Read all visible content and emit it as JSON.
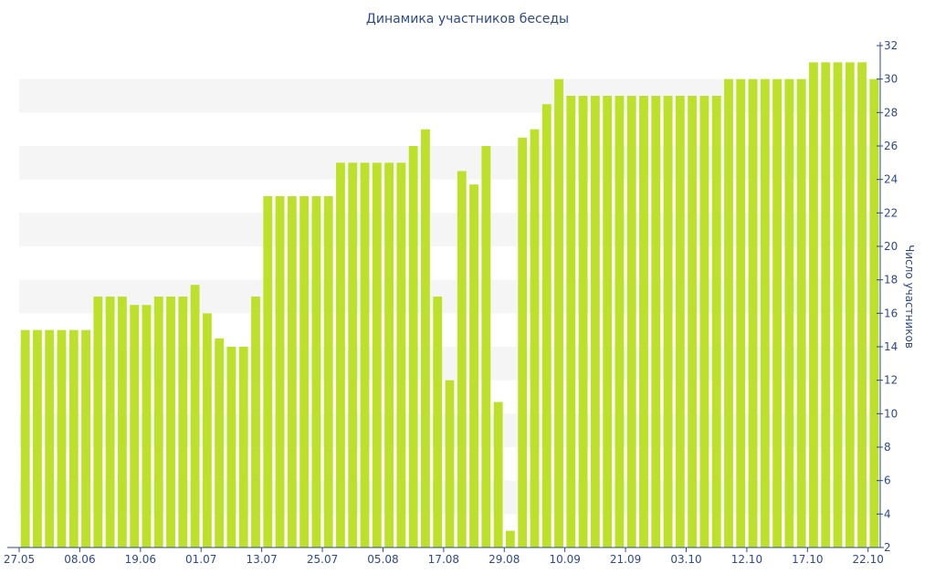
{
  "chart_data": {
    "type": "bar",
    "title": "Динамика участников беседы",
    "ylabel": "Число участников",
    "xlabel": "",
    "ylim": [
      2,
      32
    ],
    "yticks": [
      2,
      4,
      6,
      8,
      10,
      12,
      14,
      16,
      18,
      20,
      22,
      24,
      26,
      28,
      30,
      32
    ],
    "y_axis_side": "right",
    "grid": "alternating horizontal bands",
    "x_tick_labels": [
      {
        "index": 0,
        "label": "27.05"
      },
      {
        "index": 5,
        "label": "08.06"
      },
      {
        "index": 10,
        "label": "19.06"
      },
      {
        "index": 15,
        "label": "01.07"
      },
      {
        "index": 20,
        "label": "13.07"
      },
      {
        "index": 25,
        "label": "25.07"
      },
      {
        "index": 30,
        "label": "05.08"
      },
      {
        "index": 35,
        "label": "17.08"
      },
      {
        "index": 40,
        "label": "29.08"
      },
      {
        "index": 45,
        "label": "10.09"
      },
      {
        "index": 50,
        "label": "21.09"
      },
      {
        "index": 55,
        "label": "03.10"
      },
      {
        "index": 60,
        "label": "12.10"
      },
      {
        "index": 65,
        "label": "17.10"
      },
      {
        "index": 70,
        "label": "22.10"
      }
    ],
    "values": [
      15,
      15,
      15,
      15,
      15,
      15,
      17,
      17,
      17,
      16.5,
      16.5,
      17,
      17,
      17,
      17.7,
      16,
      14.5,
      14,
      14,
      17,
      23,
      23,
      23,
      23,
      23,
      23,
      25,
      25,
      25,
      25,
      25,
      25,
      26,
      27,
      17,
      12,
      24.5,
      23.7,
      26,
      10.7,
      3,
      26.5,
      27,
      28.5,
      30,
      29,
      29,
      29,
      29,
      29,
      29,
      29,
      29,
      29,
      29,
      29,
      29,
      29,
      30,
      30,
      30,
      30,
      30,
      30,
      30,
      31,
      31,
      31,
      31,
      31,
      30
    ],
    "colors": {
      "bar": "#bde02b",
      "axis": "#2c4a8a",
      "band": "#f5f5f5"
    }
  }
}
